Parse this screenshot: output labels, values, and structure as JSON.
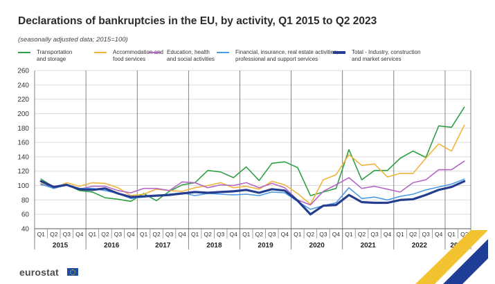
{
  "header": {
    "title": "Declarations of bankruptcies in the EU, by activity, Q1 2015 to Q2 2023",
    "subtitle": "(seasonally adjusted data; 2015=100)"
  },
  "footer": {
    "brand": "eurostat"
  },
  "colors": {
    "transport": "#2ea043",
    "accommodation": "#f0b43c",
    "education": "#b566c6",
    "financial": "#4a9be6",
    "total": "#243d8f"
  },
  "chart_data": {
    "type": "line",
    "title": "Declarations of bankruptcies in the EU, by activity, Q1 2015 to Q2 2023",
    "subtitle": "(seasonally adjusted data; 2015=100)",
    "quarters": [
      "Q1",
      "Q2",
      "Q3",
      "Q4",
      "Q1",
      "Q2",
      "Q3",
      "Q4",
      "Q1",
      "Q2",
      "Q3",
      "Q4",
      "Q1",
      "Q2",
      "Q3",
      "Q4",
      "Q1",
      "Q2",
      "Q3",
      "Q4",
      "Q1",
      "Q2",
      "Q3",
      "Q4",
      "Q1",
      "Q2",
      "Q3",
      "Q4",
      "Q1",
      "Q2",
      "Q3",
      "Q4",
      "Q1",
      "Q2"
    ],
    "years": [
      "2015",
      "2016",
      "2017",
      "2018",
      "2019",
      "2020",
      "2021",
      "2022",
      "2023"
    ],
    "ylim": [
      40,
      260
    ],
    "yticks": [
      40,
      60,
      80,
      100,
      120,
      140,
      160,
      180,
      200,
      220,
      240,
      260
    ],
    "grid": "horizontal",
    "legend_position": "top",
    "series": [
      {
        "key": "transport",
        "name": "Transportation\nand storage",
        "values": [
          109,
          98,
          101,
          93,
          91,
          83,
          81,
          78,
          89,
          79,
          92,
          101,
          104,
          121,
          119,
          111,
          126,
          107,
          131,
          133,
          125,
          86,
          91,
          96,
          150,
          108,
          121,
          121,
          138,
          148,
          139,
          183,
          181,
          209
        ]
      },
      {
        "key": "accommodation",
        "name": "Accommodation and\nfood services",
        "values": [
          103,
          96,
          104,
          99,
          104,
          103,
          97,
          86,
          88,
          95,
          93,
          92,
          97,
          100,
          104,
          97,
          99,
          95,
          106,
          101,
          89,
          74,
          108,
          115,
          143,
          128,
          130,
          112,
          117,
          117,
          138,
          158,
          148,
          184
        ]
      },
      {
        "key": "education",
        "name": "Education,  health\nand social activities",
        "values": [
          101,
          99,
          101,
          95,
          99,
          99,
          93,
          90,
          96,
          96,
          93,
          105,
          104,
          97,
          101,
          100,
          104,
          97,
          103,
          97,
          80,
          73,
          92,
          101,
          111,
          96,
          99,
          95,
          91,
          104,
          108,
          122,
          122,
          134
        ]
      },
      {
        "key": "financial",
        "name": "Financial, insurance, real estate activities;\nprofessional and support services",
        "values": [
          102,
          96,
          101,
          96,
          96,
          93,
          89,
          82,
          84,
          86,
          88,
          90,
          86,
          89,
          88,
          87,
          88,
          86,
          91,
          90,
          78,
          67,
          72,
          76,
          97,
          82,
          84,
          80,
          85,
          88,
          94,
          98,
          102,
          109
        ]
      },
      {
        "key": "total",
        "name": "Total - Industry, construction\nand market services",
        "values": [
          106,
          98,
          101,
          95,
          94,
          96,
          89,
          84,
          85,
          86,
          87,
          89,
          91,
          90,
          91,
          92,
          94,
          90,
          95,
          93,
          79,
          60,
          72,
          73,
          87,
          77,
          76,
          76,
          80,
          81,
          87,
          94,
          98,
          106
        ]
      }
    ]
  }
}
